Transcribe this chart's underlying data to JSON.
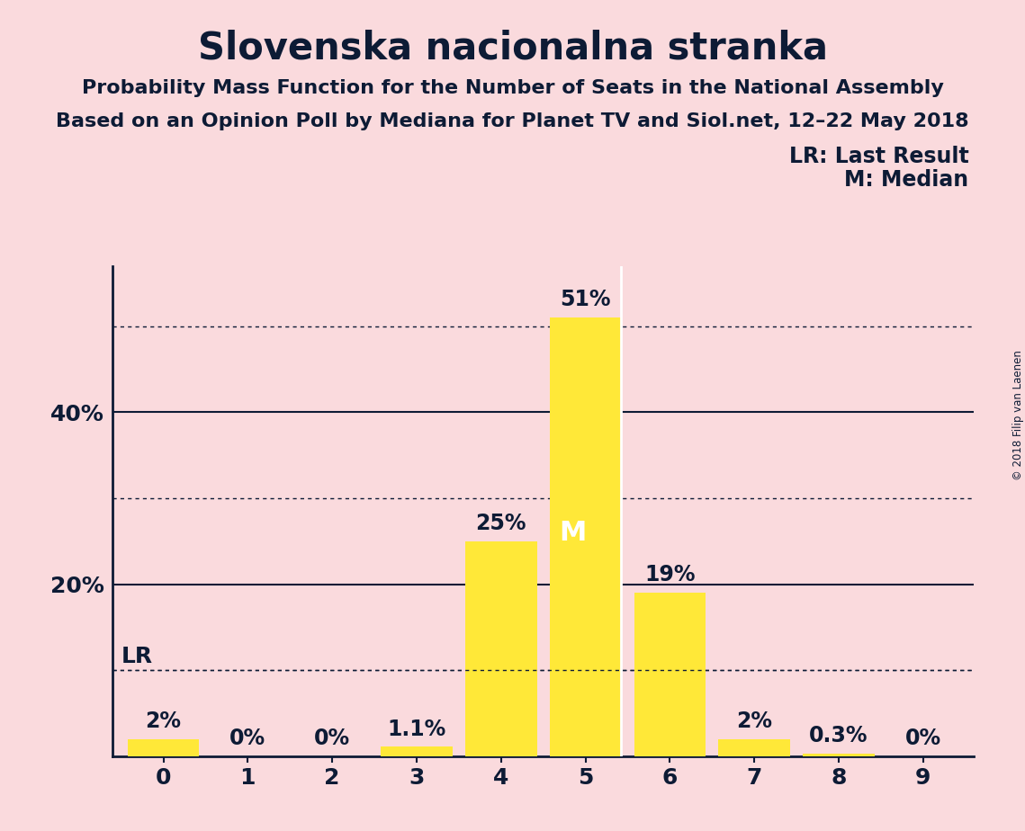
{
  "title": "Slovenska nacionalna stranka",
  "subtitle1": "Probability Mass Function for the Number of Seats in the National Assembly",
  "subtitle2": "Based on an Opinion Poll by Mediana for Planet TV and Siol.net, 12–22 May 2018",
  "copyright": "© 2018 Filip van Laenen",
  "categories": [
    0,
    1,
    2,
    3,
    4,
    5,
    6,
    7,
    8,
    9
  ],
  "values": [
    2.0,
    0.0,
    0.0,
    1.1,
    25.0,
    51.0,
    19.0,
    2.0,
    0.3,
    0.0
  ],
  "bar_color": "#FFE838",
  "background_color": "#FADADD",
  "text_color": "#0D1B35",
  "bar_labels": [
    "2%",
    "0%",
    "0%",
    "1.1%",
    "25%",
    "51%",
    "19%",
    "2%",
    "0.3%",
    "0%"
  ],
  "solid_hlines": [
    20,
    40
  ],
  "dotted_hlines": [
    10,
    30,
    50
  ],
  "lr_value": 10.0,
  "lr_label": "LR",
  "median_seat": 5,
  "median_label": "M",
  "legend_lr": "LR: Last Result",
  "legend_m": "M: Median",
  "ylim": [
    0,
    57
  ],
  "title_fontsize": 30,
  "subtitle_fontsize": 16,
  "axis_fontsize": 18,
  "bar_label_fontsize": 17,
  "legend_fontsize": 17
}
